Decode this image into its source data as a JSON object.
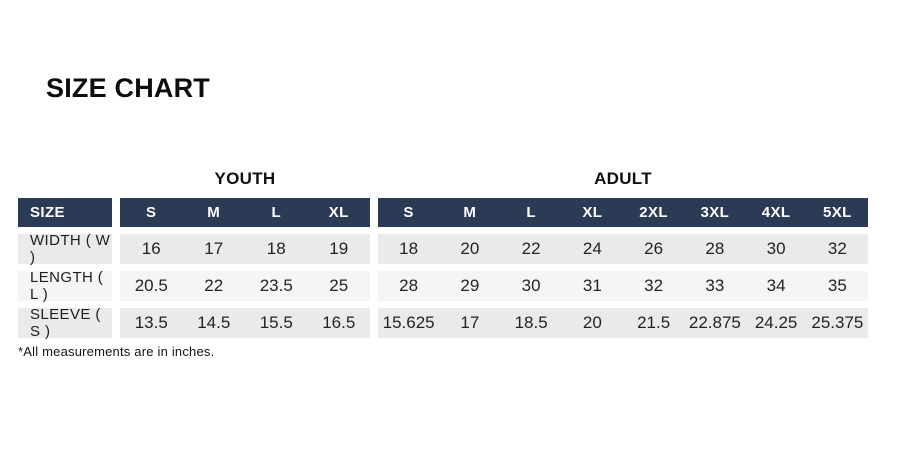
{
  "colors": {
    "header_navy": "#2b3a55",
    "row_stripe_dark": "#eaeaea",
    "row_stripe_light": "#f5f5f5",
    "background": "#ffffff",
    "title_text": "#0c0c0c"
  },
  "chart_data": {
    "type": "table",
    "title": "SIZE CHART",
    "row_header": "SIZE",
    "column_groups": [
      {
        "label": "YOUTH",
        "columns": [
          "S",
          "M",
          "L",
          "XL"
        ]
      },
      {
        "label": "ADULT",
        "columns": [
          "S",
          "M",
          "L",
          "XL",
          "2XL",
          "3XL",
          "4XL",
          "5XL"
        ]
      }
    ],
    "rows": [
      {
        "label": "WIDTH ( W )",
        "youth": [
          16,
          17,
          18,
          19
        ],
        "adult": [
          18,
          20,
          22,
          24,
          26,
          28,
          30,
          32
        ]
      },
      {
        "label": "LENGTH ( L )",
        "youth": [
          20.5,
          22,
          23.5,
          25
        ],
        "adult": [
          28,
          29,
          30,
          31,
          32,
          33,
          34,
          35
        ]
      },
      {
        "label": "SLEEVE ( S )",
        "youth": [
          13.5,
          14.5,
          15.5,
          16.5
        ],
        "adult": [
          15.625,
          17,
          18.5,
          20,
          21.5,
          22.875,
          24.25,
          25.375
        ]
      }
    ],
    "footnote": "*All measurements are in inches.",
    "layout_hints": {
      "grid": "off",
      "stripes": "alternating",
      "units": "inches"
    }
  }
}
